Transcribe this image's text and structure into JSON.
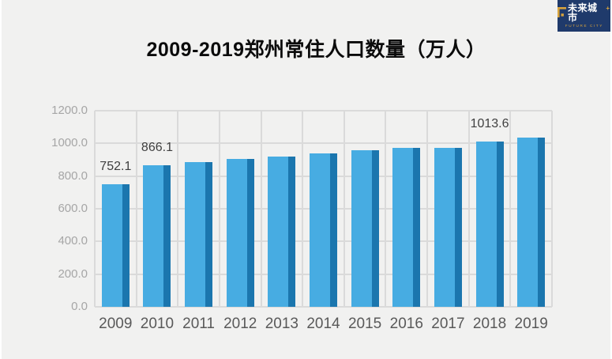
{
  "header": {
    "title": "2009-2019郑州常住人口数量（万人）"
  },
  "logo": {
    "name_cn": "未来城市",
    "name_en": "FUTURE CITY",
    "plus_glyph": "+",
    "mark_icon": "jiang-block-mark",
    "bg_color": "#1f3a6b",
    "gold_color": "#d8a33c",
    "text_color": "#ffffff"
  },
  "chart_data": {
    "type": "bar",
    "title": "2009-2019郑州常住人口数量（万人）",
    "categories": [
      "2009",
      "2010",
      "2011",
      "2012",
      "2013",
      "2014",
      "2015",
      "2016",
      "2017",
      "2018",
      "2019"
    ],
    "values": [
      752.1,
      866.1,
      885.7,
      903.1,
      919.1,
      937.8,
      956.9,
      972.4,
      972.4,
      1013.6,
      1035.2
    ],
    "data_labels": {
      "2009": "752.1",
      "2010": "866.1",
      "2018": "1013.6"
    },
    "ylim": [
      0,
      1200
    ],
    "yticks": [
      0,
      200,
      400,
      600,
      800,
      1000,
      1200
    ],
    "ytick_labels": [
      "0.0",
      "200.0",
      "400.0",
      "600.0",
      "800.0",
      "1000.0",
      "1200.0"
    ],
    "xlabel": "",
    "ylabel": "",
    "grid": "both",
    "legend": "none",
    "colors": {
      "bar": "#47ace2",
      "bar_side": "#1b76ae",
      "gridline": "#dadada",
      "ytick_text": "#a6a6a6",
      "xtick_text": "#595959",
      "data_label_text": "#3f3f3f",
      "background": "#f1f1f0"
    }
  }
}
